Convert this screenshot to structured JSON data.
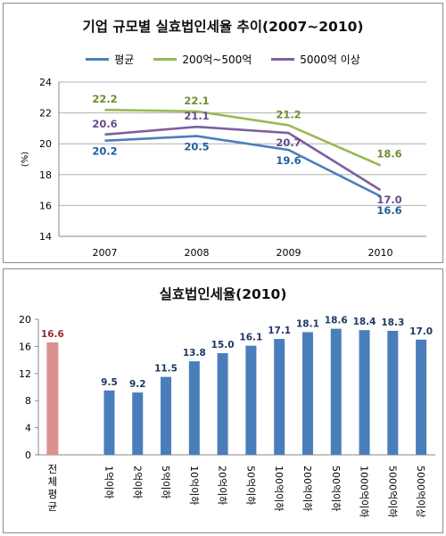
{
  "colors": {
    "avg": "#4a7ebb",
    "mid": "#98b954",
    "large": "#7d60a0",
    "label_avg": "#1f5f9f",
    "label_mid": "#6f8f2f",
    "label_large": "#6a4a8f",
    "bar": "#4a7ebb",
    "bar_total": "#db9090",
    "label_total": "#9b2c2c",
    "label_bar": "#1f3864"
  },
  "chart_data": [
    {
      "type": "line",
      "title": "기업 규모별 실효법인세율 추이(2007~2010)",
      "ylabel": "(%)",
      "x": [
        "2007",
        "2008",
        "2009",
        "2010"
      ],
      "ylim": [
        14,
        24
      ],
      "yticks": [
        "14",
        "16",
        "18",
        "20",
        "22",
        "24"
      ],
      "grid": true,
      "legend": "top",
      "series": [
        {
          "name": "평균",
          "values": [
            20.2,
            20.5,
            19.6,
            16.6
          ],
          "labels": [
            "20.2",
            "20.5",
            "19.6",
            "16.6"
          ]
        },
        {
          "name": "200억~500억",
          "values": [
            22.2,
            22.1,
            21.2,
            18.6
          ],
          "labels": [
            "22.2",
            "22.1",
            "21.2",
            "18.6"
          ]
        },
        {
          "name": "5000억 이상",
          "values": [
            20.6,
            21.1,
            20.7,
            17.0
          ],
          "labels": [
            "20.6",
            "21.1",
            "20.7",
            "17.0"
          ]
        }
      ]
    },
    {
      "type": "bar",
      "title": "실효법인세율(2010)",
      "ylim": [
        0,
        20
      ],
      "yticks": [
        "0",
        "4",
        "8",
        "12",
        "16",
        "20"
      ],
      "grid": false,
      "categories": [
        "전체 평균",
        "",
        "1억이하",
        "2억이하",
        "5억이하",
        "10억이하",
        "20억이하",
        "50억이하",
        "100억이하",
        "200억이하",
        "500억이하",
        "1000억이하",
        "5000억이하",
        "5000억이상"
      ],
      "values": [
        16.6,
        null,
        9.5,
        9.2,
        11.5,
        13.8,
        15.0,
        16.1,
        17.1,
        18.1,
        18.6,
        18.4,
        18.3,
        17.0
      ],
      "labels": [
        "16.6",
        "",
        "9.5",
        "9.2",
        "11.5",
        "13.8",
        "15.0",
        "16.1",
        "17.1",
        "18.1",
        "18.6",
        "18.4",
        "18.3",
        "17.0"
      ]
    }
  ]
}
